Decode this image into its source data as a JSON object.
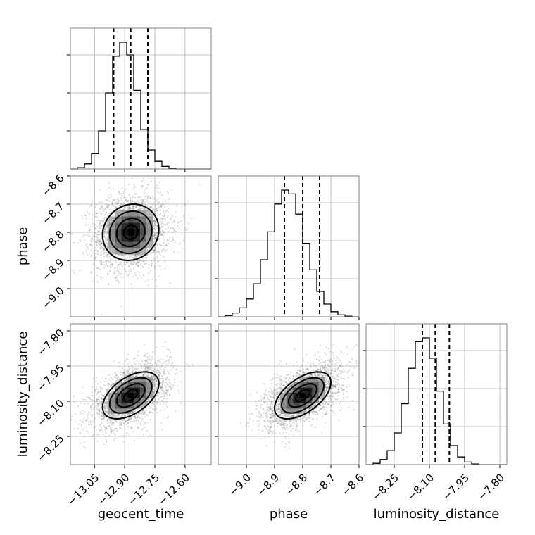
{
  "chart_data": {
    "type": "corner",
    "parameters": [
      "geocent_time",
      "phase",
      "luminosity_distance"
    ],
    "axis_labels": {
      "x": [
        "geocent_time",
        "phase",
        "luminosity_distance"
      ],
      "y": [
        "",
        "phase",
        "luminosity_distance"
      ]
    },
    "ranges": {
      "geocent_time": [
        -13.17,
        -12.47
      ],
      "phase": [
        -9.1,
        -8.6
      ],
      "luminosity_distance": [
        -8.37,
        -7.77
      ]
    },
    "ticks": {
      "geocent_time": {
        "values": [
          -13.05,
          -12.9,
          -12.75,
          -12.6
        ],
        "labels": [
          "−13.05",
          "−12.90",
          "−12.75",
          "−12.60"
        ]
      },
      "phase": {
        "values": [
          -9.0,
          -8.9,
          -8.8,
          -8.7,
          -8.6
        ],
        "labels": [
          "−9.0",
          "−8.9",
          "−8.8",
          "−8.7",
          "−8.6"
        ]
      },
      "luminosity_distance": {
        "values": [
          -8.25,
          -8.1,
          -7.95,
          -7.8
        ],
        "labels": [
          "−8.25",
          "−8.10",
          "−7.95",
          "−7.80"
        ]
      }
    },
    "marginals": {
      "geocent_time": {
        "bin_edges": [
          -13.17,
          -13.135,
          -13.1,
          -13.065,
          -13.03,
          -12.995,
          -12.96,
          -12.925,
          -12.89,
          -12.855,
          -12.82,
          -12.785,
          -12.75,
          -12.715,
          -12.68,
          -12.645,
          -12.61,
          -12.575,
          -12.54,
          -12.505,
          -12.47
        ],
        "counts": [
          0.0,
          0.01,
          0.04,
          0.12,
          0.3,
          0.6,
          0.89,
          1.0,
          0.9,
          0.62,
          0.31,
          0.15,
          0.06,
          0.02,
          0.005,
          0,
          0,
          0,
          0,
          0
        ],
        "quantiles": [
          -12.955,
          -12.87,
          -12.785
        ]
      },
      "phase": {
        "bin_edges": [
          -9.1,
          -9.075,
          -9.05,
          -9.025,
          -9.0,
          -8.975,
          -8.95,
          -8.925,
          -8.9,
          -8.875,
          -8.85,
          -8.825,
          -8.8,
          -8.775,
          -8.75,
          -8.725,
          -8.7,
          -8.675,
          -8.65,
          -8.625,
          -8.6
        ],
        "counts": [
          0.0,
          0.01,
          0.03,
          0.07,
          0.14,
          0.26,
          0.45,
          0.67,
          0.89,
          1.0,
          0.97,
          0.81,
          0.58,
          0.37,
          0.2,
          0.1,
          0.04,
          0.015,
          0.005,
          0
        ],
        "quantiles": [
          -8.865,
          -8.8,
          -8.74
        ]
      },
      "luminosity_distance": {
        "bin_edges": [
          -8.37,
          -8.34,
          -8.31,
          -8.28,
          -8.25,
          -8.22,
          -8.19,
          -8.16,
          -8.13,
          -8.1,
          -8.07,
          -8.04,
          -8.01,
          -7.98,
          -7.95,
          -7.92,
          -7.89,
          -7.86,
          -7.83,
          -7.8,
          -7.77
        ],
        "counts": [
          0.0,
          0.01,
          0.04,
          0.11,
          0.25,
          0.48,
          0.76,
          0.97,
          1.0,
          0.84,
          0.58,
          0.32,
          0.15,
          0.06,
          0.02,
          0.005,
          0,
          0,
          0,
          0
        ],
        "quantiles": [
          -8.13,
          -8.075,
          -8.015
        ]
      }
    },
    "joint": [
      {
        "x": "geocent_time",
        "y": "phase",
        "mean": [
          -12.87,
          -8.8
        ],
        "sd": [
          0.07,
          0.05
        ],
        "correlation": 0.1,
        "samples": 2500
      },
      {
        "x": "geocent_time",
        "y": "luminosity_distance",
        "mean": [
          -12.87,
          -8.075
        ],
        "sd": [
          0.07,
          0.05
        ],
        "correlation": 0.5,
        "samples": 2500
      },
      {
        "x": "phase",
        "y": "luminosity_distance",
        "mean": [
          -8.8,
          -8.075
        ],
        "sd": [
          0.05,
          0.05
        ],
        "correlation": 0.55,
        "samples": 2500
      }
    ],
    "contour_levels": [
      0.5,
      1.0,
      1.5,
      2.0
    ],
    "grid": true
  }
}
